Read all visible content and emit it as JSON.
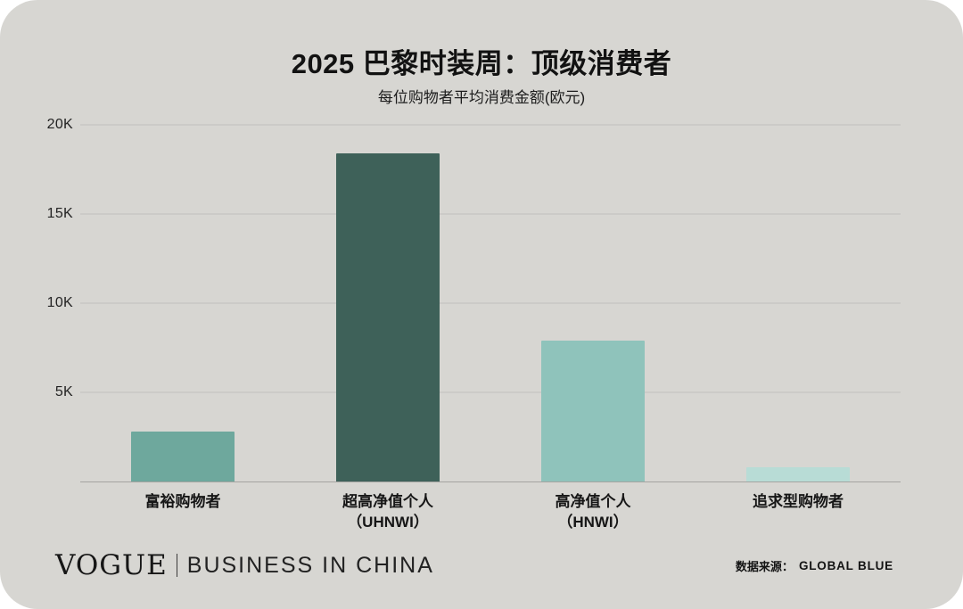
{
  "header": {
    "title": "2025 巴黎时装周：顶级消费者",
    "subtitle": "每位购物者平均消费金额(欧元)"
  },
  "chart_data": {
    "type": "bar",
    "title": "2025 巴黎时装周：顶级消费者",
    "subtitle": "每位购物者平均消费金额(欧元)",
    "categories": [
      "富裕购物者",
      "超高净值个人\n（UHNWI）",
      "高净值个人\n（HNWI）",
      "追求型购物者"
    ],
    "values": [
      2800,
      18400,
      7900,
      800
    ],
    "colors": [
      "#6ea89d",
      "#3e6159",
      "#8fc3bb",
      "#b8dcd6"
    ],
    "xlabel": "",
    "ylabel": "",
    "ylim": [
      0,
      20000
    ],
    "yticks": [
      {
        "value": 20000,
        "label": "20K"
      },
      {
        "value": 15000,
        "label": "15K"
      },
      {
        "value": 10000,
        "label": "10K"
      },
      {
        "value": 5000,
        "label": "5K"
      }
    ],
    "grid": true,
    "legend": false
  },
  "footer": {
    "logo_vogue": "VOGUE",
    "logo_rest": "BUSINESS IN CHINA",
    "source_label": "数据来源：",
    "source_value": "GLOBAL BLUE"
  },
  "colors": {
    "background": "#d7d6d2",
    "page": "#ffffff",
    "gridline": "#c1c0bd",
    "baseline": "#a5a4a1",
    "text": "#161616"
  }
}
